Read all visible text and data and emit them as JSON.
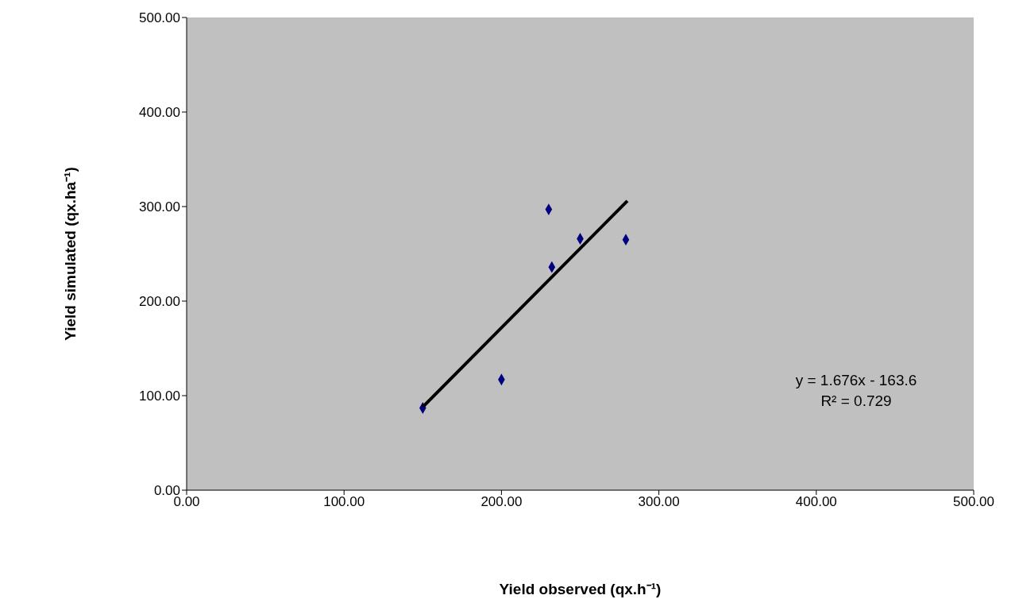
{
  "chart_data": {
    "type": "scatter",
    "xlabel": "Yield  observed (qx.h⁻¹)",
    "ylabel": "Yield simulated  (qx.ha⁻¹)",
    "xlim": [
      0,
      500
    ],
    "ylim": [
      0,
      500
    ],
    "xticks": [
      {
        "value": 0,
        "label": "0.00"
      },
      {
        "value": 100,
        "label": "100.00"
      },
      {
        "value": 200,
        "label": "200.00"
      },
      {
        "value": 300,
        "label": "300.00"
      },
      {
        "value": 400,
        "label": "400.00"
      },
      {
        "value": 500,
        "label": "500.00"
      }
    ],
    "yticks": [
      {
        "value": 0,
        "label": "0.00"
      },
      {
        "value": 100,
        "label": "100.00"
      },
      {
        "value": 200,
        "label": "200.00"
      },
      {
        "value": 300,
        "label": "300.00"
      },
      {
        "value": 400,
        "label": "400.00"
      },
      {
        "value": 500,
        "label": "500.00"
      }
    ],
    "grid": false,
    "marker": "diamond",
    "series": [
      {
        "color": "#000080",
        "x": [
          150,
          200,
          230,
          232,
          250,
          279
        ],
        "values": [
          87,
          117,
          297,
          236,
          266,
          265
        ]
      },
      {
        "type": "line",
        "color": "#000000",
        "marker": "none",
        "x": [
          150,
          280
        ],
        "values": [
          88,
          306
        ]
      }
    ],
    "annotations": [
      "y = 1.676x - 163.6",
      "R² = 0.729"
    ]
  }
}
